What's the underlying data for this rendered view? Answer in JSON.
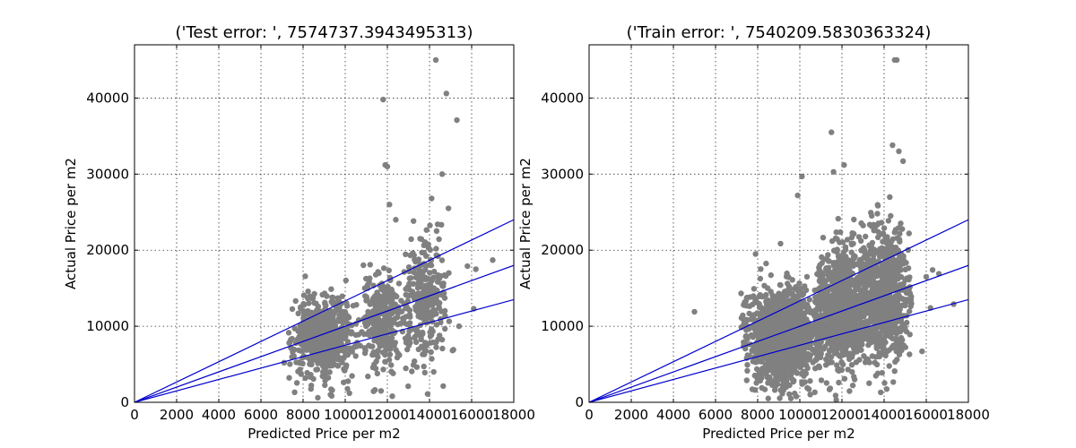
{
  "chart_data": [
    {
      "type": "scatter",
      "title": "('Test error: ', 7574737.3943495313)",
      "xlabel": "Predicted Price per m2",
      "ylabel": "Actual Price per m2",
      "xlim": [
        0,
        18000
      ],
      "ylim": [
        0,
        47000
      ],
      "xticks": [
        0,
        2000,
        4000,
        6000,
        8000,
        10000,
        12000,
        14000,
        16000,
        18000
      ],
      "yticks": [
        0,
        10000,
        20000,
        30000,
        40000
      ],
      "grid": true,
      "point_color": "#808080",
      "line_color": "#0000cc",
      "lines": [
        {
          "x": [
            0,
            18000
          ],
          "y": [
            0,
            24000
          ]
        },
        {
          "x": [
            0,
            18000
          ],
          "y": [
            0,
            18000
          ]
        },
        {
          "x": [
            0,
            18000
          ],
          "y": [
            0,
            13500
          ]
        }
      ],
      "clusters": [
        {
          "cx": 9000,
          "cy": 8500,
          "sx": 700,
          "sy": 2600,
          "n": 650,
          "xmin": 7300,
          "xmax": 10800
        },
        {
          "cx": 11800,
          "cy": 11000,
          "sx": 450,
          "sy": 3200,
          "n": 320,
          "xmin": 10800,
          "xmax": 12800
        },
        {
          "cx": 13800,
          "cy": 13000,
          "sx": 550,
          "sy": 4000,
          "n": 300,
          "xmin": 12800,
          "xmax": 15200
        }
      ],
      "points": [
        {
          "x": 11800,
          "y": 39800
        },
        {
          "x": 14300,
          "y": 45000
        },
        {
          "x": 14800,
          "y": 40600
        },
        {
          "x": 15300,
          "y": 37100
        },
        {
          "x": 11900,
          "y": 31200
        },
        {
          "x": 12000,
          "y": 31000
        },
        {
          "x": 14600,
          "y": 30000
        },
        {
          "x": 14100,
          "y": 26800
        },
        {
          "x": 14900,
          "y": 25500
        },
        {
          "x": 12100,
          "y": 26000
        },
        {
          "x": 12400,
          "y": 24000
        },
        {
          "x": 15800,
          "y": 17900
        },
        {
          "x": 16200,
          "y": 17500
        },
        {
          "x": 17000,
          "y": 18700
        },
        {
          "x": 16100,
          "y": 12300
        },
        {
          "x": 15400,
          "y": 10000
        },
        {
          "x": 10200,
          "y": 1200
        },
        {
          "x": 11700,
          "y": 1500
        },
        {
          "x": 8700,
          "y": 600
        },
        {
          "x": 9300,
          "y": 1000
        },
        {
          "x": 14200,
          "y": 4000
        },
        {
          "x": 7100,
          "y": 5200
        }
      ]
    },
    {
      "type": "scatter",
      "title": "('Train error: ', 7540209.5830363324)",
      "xlabel": "Predicted Price per m2",
      "ylabel": "Actual Price per m2",
      "xlim": [
        0,
        18000
      ],
      "ylim": [
        0,
        47000
      ],
      "xticks": [
        0,
        2000,
        4000,
        6000,
        8000,
        10000,
        12000,
        14000,
        16000,
        18000
      ],
      "yticks": [
        0,
        10000,
        20000,
        30000,
        40000
      ],
      "grid": true,
      "point_color": "#808080",
      "line_color": "#0000cc",
      "lines": [
        {
          "x": [
            0,
            18000
          ],
          "y": [
            0,
            24000
          ]
        },
        {
          "x": [
            0,
            18000
          ],
          "y": [
            0,
            18000
          ]
        },
        {
          "x": [
            0,
            18000
          ],
          "y": [
            0,
            13500
          ]
        }
      ],
      "clusters": [
        {
          "cx": 9200,
          "cy": 9000,
          "sx": 800,
          "sy": 3000,
          "n": 1400,
          "xmin": 7200,
          "xmax": 11000
        },
        {
          "cx": 12000,
          "cy": 12500,
          "sx": 600,
          "sy": 3800,
          "n": 800,
          "xmin": 10800,
          "xmax": 13200
        },
        {
          "cx": 13900,
          "cy": 14000,
          "sx": 600,
          "sy": 4200,
          "n": 800,
          "xmin": 12800,
          "xmax": 15300
        }
      ],
      "points": [
        {
          "x": 14500,
          "y": 45000
        },
        {
          "x": 14600,
          "y": 45000
        },
        {
          "x": 11500,
          "y": 35500
        },
        {
          "x": 14400,
          "y": 33800
        },
        {
          "x": 14700,
          "y": 33000
        },
        {
          "x": 14900,
          "y": 31700
        },
        {
          "x": 12100,
          "y": 31200
        },
        {
          "x": 10100,
          "y": 29700
        },
        {
          "x": 11600,
          "y": 30300
        },
        {
          "x": 9900,
          "y": 27200
        },
        {
          "x": 5000,
          "y": 11900
        },
        {
          "x": 7900,
          "y": 19500
        },
        {
          "x": 16200,
          "y": 12400
        },
        {
          "x": 17300,
          "y": 12900
        },
        {
          "x": 16300,
          "y": 17400
        },
        {
          "x": 16000,
          "y": 16500
        },
        {
          "x": 15800,
          "y": 6700
        },
        {
          "x": 14500,
          "y": 4100
        },
        {
          "x": 13700,
          "y": 3800
        },
        {
          "x": 12600,
          "y": 3000
        },
        {
          "x": 8500,
          "y": 500
        },
        {
          "x": 16600,
          "y": 16900
        }
      ]
    }
  ]
}
